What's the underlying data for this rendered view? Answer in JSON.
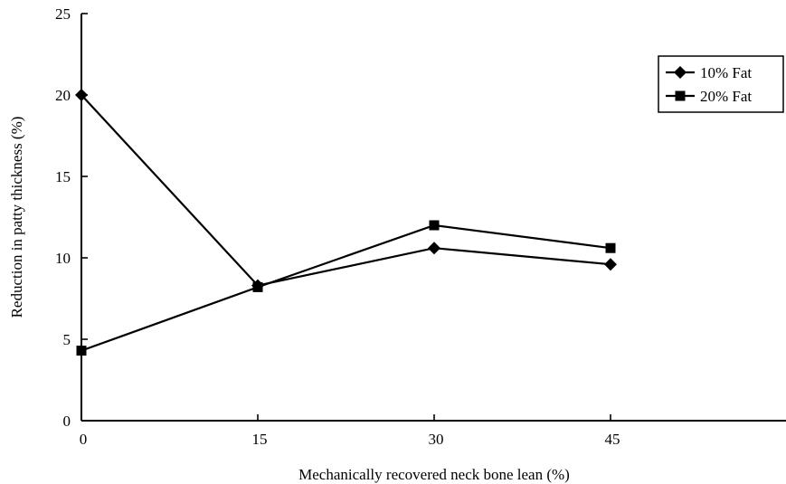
{
  "chart_data": {
    "type": "line",
    "x": [
      0,
      15,
      30,
      45
    ],
    "x_ticks": [
      "0",
      "15",
      "30",
      "45"
    ],
    "y_ticks": [
      "0",
      "5",
      "10",
      "15",
      "20",
      "25"
    ],
    "xlim": [
      0,
      60
    ],
    "ylim": [
      0,
      25
    ],
    "xlabel": "Mechanically recovered neck bone lean (%)",
    "ylabel": "Reduction in patty thickness (%)",
    "grid": false,
    "legend_position": "top-right",
    "series": [
      {
        "name": "10% Fat",
        "marker": "diamond",
        "color": "#000000",
        "values": [
          20.0,
          8.3,
          10.6,
          9.6
        ]
      },
      {
        "name": "20% Fat",
        "marker": "square",
        "color": "#000000",
        "values": [
          4.3,
          8.2,
          12.0,
          10.6
        ]
      }
    ]
  }
}
